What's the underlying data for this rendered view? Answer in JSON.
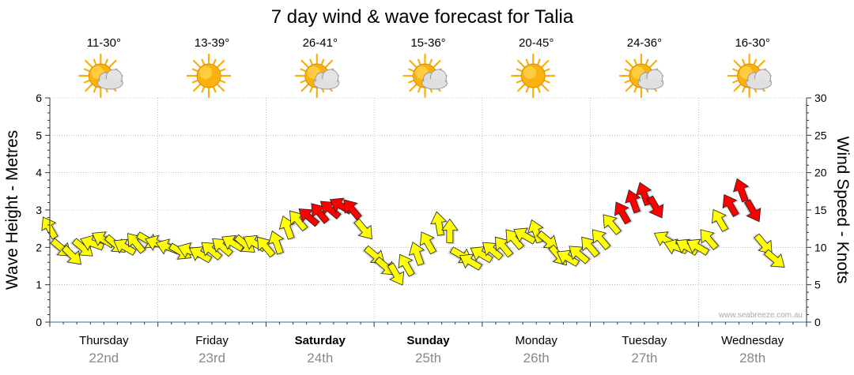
{
  "chart_data": {
    "type": "line",
    "title": "7 day wind & wave forecast for Talia",
    "ylabel_left": "Wave Height - Metres",
    "ylabel_right": "Wind Speed - Knots",
    "ylim_left": [
      0,
      6
    ],
    "ylim_right": [
      0,
      30
    ],
    "yticks_left": [
      "0",
      "1",
      "2",
      "3",
      "4",
      "5",
      "6"
    ],
    "yticks_right": [
      "0",
      "5",
      "10",
      "15",
      "20",
      "25",
      "30"
    ],
    "watermark": "www.seabreeze.com.au",
    "colors": {
      "strong_wind": "#ff0000",
      "moderate_wind": "#ffff00",
      "grid": "#999999",
      "axis": "#333333",
      "date": "#888888"
    },
    "days": [
      {
        "name": "Thursday",
        "date": "22nd",
        "temp": "11-30°",
        "weather": "partly-cloudy-icon",
        "weekend": false
      },
      {
        "name": "Friday",
        "date": "23rd",
        "temp": "13-39°",
        "weather": "sunny-icon",
        "weekend": false
      },
      {
        "name": "Saturday",
        "date": "24th",
        "temp": "26-41°",
        "weather": "partly-cloudy-icon",
        "weekend": true
      },
      {
        "name": "Sunday",
        "date": "25th",
        "temp": "15-36°",
        "weather": "partly-cloudy-icon",
        "weekend": true
      },
      {
        "name": "Monday",
        "date": "26th",
        "temp": "20-45°",
        "weather": "sunny-icon",
        "weekend": false
      },
      {
        "name": "Tuesday",
        "date": "27th",
        "temp": "24-36°",
        "weather": "partly-cloudy-icon",
        "weekend": false
      },
      {
        "name": "Wednesday",
        "date": "28th",
        "temp": "16-30°",
        "weather": "partly-cloudy-icon",
        "weekend": false
      }
    ],
    "wind_series": {
      "name": "Wind Speed (knots) and direction (arrow rotation, degrees)",
      "threshold_yellow_below": 14,
      "points": [
        {
          "t": 0.0,
          "speed": 12.5,
          "dir": 330
        },
        {
          "t": 0.1,
          "speed": 10.0,
          "dir": 130
        },
        {
          "t": 0.2,
          "speed": 9.0,
          "dir": 135
        },
        {
          "t": 0.3,
          "speed": 10.0,
          "dir": 130
        },
        {
          "t": 0.4,
          "speed": 10.5,
          "dir": 290
        },
        {
          "t": 0.5,
          "speed": 11.0,
          "dir": 300
        },
        {
          "t": 0.6,
          "speed": 10.5,
          "dir": 130
        },
        {
          "t": 0.7,
          "speed": 10.0,
          "dir": 300
        },
        {
          "t": 0.8,
          "speed": 10.5,
          "dir": 320
        },
        {
          "t": 0.9,
          "speed": 11.0,
          "dir": 120
        },
        {
          "t": 1.0,
          "speed": 10.5,
          "dir": 290
        },
        {
          "t": 1.1,
          "speed": 10.0,
          "dir": 290
        },
        {
          "t": 1.2,
          "speed": 9.5,
          "dir": 120
        },
        {
          "t": 1.3,
          "speed": 9.5,
          "dir": 290
        },
        {
          "t": 1.4,
          "speed": 9.0,
          "dir": 300
        },
        {
          "t": 1.5,
          "speed": 9.5,
          "dir": 310
        },
        {
          "t": 1.6,
          "speed": 10.0,
          "dir": 310
        },
        {
          "t": 1.7,
          "speed": 10.5,
          "dir": 300
        },
        {
          "t": 1.8,
          "speed": 10.5,
          "dir": 130
        },
        {
          "t": 1.9,
          "speed": 10.5,
          "dir": 300
        },
        {
          "t": 2.0,
          "speed": 10.0,
          "dir": 320
        },
        {
          "t": 2.1,
          "speed": 10.5,
          "dir": 340
        },
        {
          "t": 2.2,
          "speed": 12.5,
          "dir": 340
        },
        {
          "t": 2.3,
          "speed": 13.5,
          "dir": 320
        },
        {
          "t": 2.4,
          "speed": 14.0,
          "dir": 310
        },
        {
          "t": 2.5,
          "speed": 14.5,
          "dir": 320
        },
        {
          "t": 2.6,
          "speed": 15.0,
          "dir": 310
        },
        {
          "t": 2.7,
          "speed": 15.5,
          "dir": 300
        },
        {
          "t": 2.8,
          "speed": 15.0,
          "dir": 320
        },
        {
          "t": 2.9,
          "speed": 12.5,
          "dir": 140
        },
        {
          "t": 3.0,
          "speed": 9.0,
          "dir": 130
        },
        {
          "t": 3.1,
          "speed": 7.5,
          "dir": 130
        },
        {
          "t": 3.2,
          "speed": 6.5,
          "dir": 150
        },
        {
          "t": 3.3,
          "speed": 7.5,
          "dir": 330
        },
        {
          "t": 3.4,
          "speed": 9.0,
          "dir": 340
        },
        {
          "t": 3.5,
          "speed": 10.5,
          "dir": 330
        },
        {
          "t": 3.6,
          "speed": 13.0,
          "dir": 350
        },
        {
          "t": 3.7,
          "speed": 12.0,
          "dir": 0
        },
        {
          "t": 3.8,
          "speed": 9.0,
          "dir": 120
        },
        {
          "t": 3.9,
          "speed": 8.0,
          "dir": 300
        },
        {
          "t": 4.0,
          "speed": 9.0,
          "dir": 300
        },
        {
          "t": 4.1,
          "speed": 9.5,
          "dir": 310
        },
        {
          "t": 4.2,
          "speed": 10.0,
          "dir": 320
        },
        {
          "t": 4.3,
          "speed": 11.0,
          "dir": 320
        },
        {
          "t": 4.4,
          "speed": 11.5,
          "dir": 300
        },
        {
          "t": 4.5,
          "speed": 12.0,
          "dir": 340
        },
        {
          "t": 4.6,
          "speed": 11.0,
          "dir": 130
        },
        {
          "t": 4.7,
          "speed": 9.0,
          "dir": 140
        },
        {
          "t": 4.8,
          "speed": 8.5,
          "dir": 300
        },
        {
          "t": 4.9,
          "speed": 9.0,
          "dir": 310
        },
        {
          "t": 5.0,
          "speed": 10.0,
          "dir": 320
        },
        {
          "t": 5.1,
          "speed": 11.0,
          "dir": 320
        },
        {
          "t": 5.2,
          "speed": 13.0,
          "dir": 320
        },
        {
          "t": 5.3,
          "speed": 14.5,
          "dir": 330
        },
        {
          "t": 5.4,
          "speed": 16.0,
          "dir": 340
        },
        {
          "t": 5.5,
          "speed": 17.0,
          "dir": 340
        },
        {
          "t": 5.6,
          "speed": 15.5,
          "dir": 150
        },
        {
          "t": 5.7,
          "speed": 11.0,
          "dir": 300
        },
        {
          "t": 5.8,
          "speed": 10.0,
          "dir": 290
        },
        {
          "t": 5.9,
          "speed": 10.0,
          "dir": 300
        },
        {
          "t": 6.0,
          "speed": 10.0,
          "dir": 300
        },
        {
          "t": 6.1,
          "speed": 11.0,
          "dir": 320
        },
        {
          "t": 6.2,
          "speed": 13.5,
          "dir": 330
        },
        {
          "t": 6.3,
          "speed": 15.5,
          "dir": 330
        },
        {
          "t": 6.4,
          "speed": 17.5,
          "dir": 340
        },
        {
          "t": 6.5,
          "speed": 15.0,
          "dir": 150
        },
        {
          "t": 6.6,
          "speed": 10.5,
          "dir": 140
        },
        {
          "t": 6.7,
          "speed": 8.5,
          "dir": 130
        }
      ]
    }
  }
}
